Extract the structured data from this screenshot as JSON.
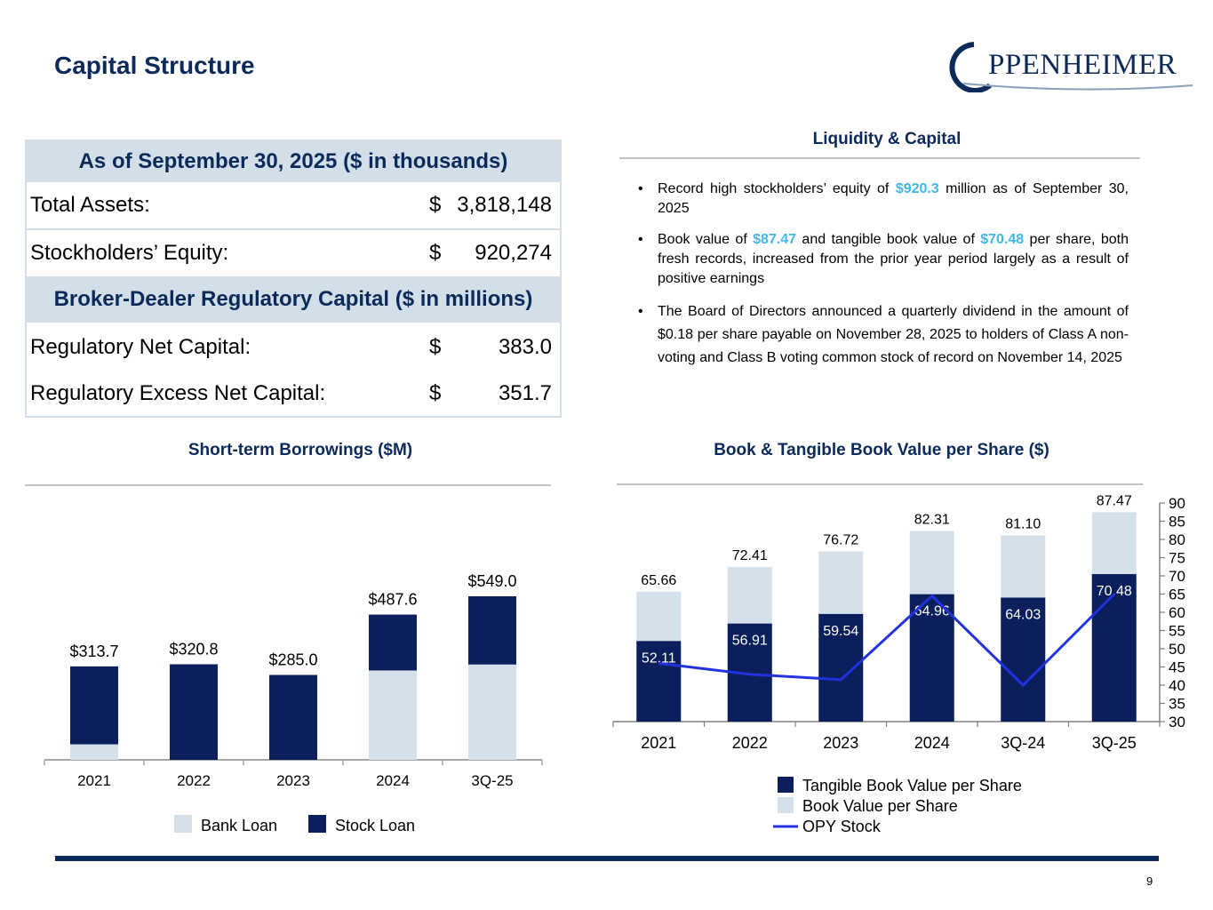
{
  "header": {
    "title": "Capital Structure",
    "logo_text": "PPENHEIMER"
  },
  "table": {
    "header1": "As of September 30, 2025 ($ in thousands)",
    "rows1": [
      {
        "label": "Total Assets:",
        "currency": "$",
        "value": "3,818,148"
      },
      {
        "label": "Stockholders’ Equity:",
        "currency": "$",
        "value": "920,274"
      }
    ],
    "header2": "Broker-Dealer Regulatory Capital ($ in millions)",
    "rows2": [
      {
        "label": "Regulatory Net Capital:",
        "currency": "$",
        "value": "383.0"
      },
      {
        "label": "Regulatory Excess Net Capital:",
        "currency": "$",
        "value": "351.7"
      }
    ]
  },
  "liquidity": {
    "title": "Liquidity & Capital",
    "bullet1": {
      "pre": "Record high stockholders’ equity of ",
      "hl": "$920.3",
      "post": " million as of September 30, 2025"
    },
    "bullet2": {
      "pre": "Book value of ",
      "hl1": "$87.47",
      "mid": " and tangible book value of ",
      "hl2": "$70.48",
      "post": " per share, both fresh records, increased from the prior year period largely as a result of positive earnings"
    },
    "bullet3": "The Board of Directors announced a quarterly dividend in the amount of $0.18 per share payable on November 28, 2025 to holders of Class A non-voting and Class B voting common stock of record on November 14, 2025"
  },
  "colors": {
    "navy": "#0b2a5a",
    "bar_dark": "#0a1f5c",
    "bar_light": "#d5e1ea",
    "highlight": "#3fb8e8",
    "line": "#2233dd"
  },
  "chart_data": [
    {
      "type": "bar",
      "title": "Short-term Borrowings ($M)",
      "stacked": true,
      "categories": [
        "2021",
        "2022",
        "2023",
        "2024",
        "3Q-25"
      ],
      "series": [
        {
          "name": "Bank Loan",
          "values": [
            52.0,
            0,
            0,
            300.0,
            320.0
          ]
        },
        {
          "name": "Stock Loan",
          "values": [
            261.7,
            320.8,
            285.0,
            187.6,
            229.0
          ]
        }
      ],
      "totals": [
        "$313.7",
        "$320.8",
        "$285.0",
        "$487.6",
        "$549.0"
      ],
      "ylim": [
        0,
        549.0
      ],
      "legend": "bottom"
    },
    {
      "type": "bar",
      "title": "Book & Tangible Book Value per Share ($)",
      "categories": [
        "2021",
        "2022",
        "2023",
        "2024",
        "3Q-24",
        "3Q-25"
      ],
      "series": [
        {
          "name": "Tangible Book Value per Share",
          "values": [
            52.11,
            56.91,
            59.54,
            64.96,
            64.03,
            70.48
          ]
        },
        {
          "name": "Book Value per Share",
          "values": [
            65.66,
            72.41,
            76.72,
            82.31,
            81.1,
            87.47
          ]
        },
        {
          "name": "OPY Stock",
          "type": "line",
          "values": [
            46.0,
            43.0,
            41.5,
            64.5,
            40.0,
            65.0
          ]
        }
      ],
      "tangible_labels": [
        "52.11",
        "56.91",
        "59.54",
        "64.96",
        "64.03",
        "70.48"
      ],
      "book_labels": [
        "65.66",
        "72.41",
        "76.72",
        "82.31",
        "81.10",
        "87.47"
      ],
      "y_ticks": [
        "30",
        "35",
        "40",
        "45",
        "50",
        "55",
        "60",
        "65",
        "70",
        "75",
        "80",
        "85",
        "90"
      ],
      "ylim": [
        30,
        90
      ],
      "legend": "bottom"
    }
  ],
  "page_number": "9"
}
